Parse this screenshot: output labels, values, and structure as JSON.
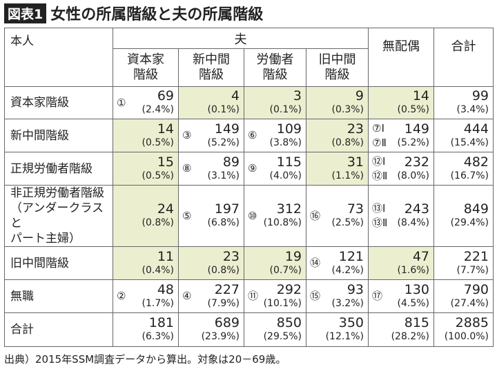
{
  "header": {
    "badge": "図表1",
    "title": "女性の所属階級と夫の所属階級"
  },
  "table": {
    "row_header": "本人",
    "group_header": "夫",
    "columns": [
      [
        "資本家",
        "階級"
      ],
      [
        "新中間",
        "階級"
      ],
      [
        "労働者",
        "階級"
      ],
      [
        "旧中間",
        "階級"
      ]
    ],
    "single_columns": [
      "無配偶",
      "合計"
    ],
    "rows": [
      {
        "label": [
          "資本家階級"
        ],
        "cells": [
          {
            "markers": [
              "①"
            ],
            "count": 69,
            "percent": "(2.4%)",
            "highlight": false
          },
          {
            "markers": [],
            "count": 4,
            "percent": "(0.1%)",
            "highlight": true
          },
          {
            "markers": [],
            "count": 3,
            "percent": "(0.1%)",
            "highlight": true
          },
          {
            "markers": [],
            "count": 9,
            "percent": "(0.3%)",
            "highlight": true
          },
          {
            "markers": [],
            "count": 14,
            "percent": "(0.5%)",
            "highlight": true
          },
          {
            "markers": [],
            "count": 99,
            "percent": "(3.4%)",
            "highlight": false
          }
        ]
      },
      {
        "label": [
          "新中間階級"
        ],
        "cells": [
          {
            "markers": [],
            "count": 14,
            "percent": "(0.5%)",
            "highlight": true
          },
          {
            "markers": [
              "③"
            ],
            "count": 149,
            "percent": "(5.2%)",
            "highlight": false
          },
          {
            "markers": [
              "⑥"
            ],
            "count": 109,
            "percent": "(3.8%)",
            "highlight": false
          },
          {
            "markers": [],
            "count": 23,
            "percent": "(0.8%)",
            "highlight": true
          },
          {
            "markers": [
              "⑦Ⅰ",
              "⑦Ⅱ"
            ],
            "count": 149,
            "percent": "(5.2%)",
            "highlight": false
          },
          {
            "markers": [],
            "count": 444,
            "percent": "(15.4%)",
            "highlight": false
          }
        ]
      },
      {
        "label": [
          "正規労働者階級"
        ],
        "cells": [
          {
            "markers": [],
            "count": 15,
            "percent": "(0.5%)",
            "highlight": true
          },
          {
            "markers": [
              "⑧"
            ],
            "count": 89,
            "percent": "(3.1%)",
            "highlight": false
          },
          {
            "markers": [
              "⑨"
            ],
            "count": 115,
            "percent": "(4.0%)",
            "highlight": false
          },
          {
            "markers": [],
            "count": 31,
            "percent": "(1.1%)",
            "highlight": true
          },
          {
            "markers": [
              "⑫Ⅰ",
              "⑫Ⅱ"
            ],
            "count": 232,
            "percent": "(8.0%)",
            "highlight": false
          },
          {
            "markers": [],
            "count": 482,
            "percent": "(16.7%)",
            "highlight": false
          }
        ]
      },
      {
        "label": [
          "非正規労働者階級",
          "（アンダークラスと",
          "パート主婦）"
        ],
        "cells": [
          {
            "markers": [],
            "count": 24,
            "percent": "(0.8%)",
            "highlight": true
          },
          {
            "markers": [
              "⑤"
            ],
            "count": 197,
            "percent": "(6.8%)",
            "highlight": false
          },
          {
            "markers": [
              "⑩"
            ],
            "count": 312,
            "percent": "(10.8%)",
            "highlight": false
          },
          {
            "markers": [
              "⑯"
            ],
            "count": 73,
            "percent": "(2.5%)",
            "highlight": false
          },
          {
            "markers": [
              "⑬Ⅰ",
              "⑬Ⅱ"
            ],
            "count": 243,
            "percent": "(8.4%)",
            "highlight": false
          },
          {
            "markers": [],
            "count": 849,
            "percent": "(29.4%)",
            "highlight": false
          }
        ]
      },
      {
        "label": [
          "旧中間階級"
        ],
        "cells": [
          {
            "markers": [],
            "count": 11,
            "percent": "(0.4%)",
            "highlight": true
          },
          {
            "markers": [],
            "count": 23,
            "percent": "(0.8%)",
            "highlight": true
          },
          {
            "markers": [],
            "count": 19,
            "percent": "(0.7%)",
            "highlight": true
          },
          {
            "markers": [
              "⑭"
            ],
            "count": 121,
            "percent": "(4.2%)",
            "highlight": false
          },
          {
            "markers": [],
            "count": 47,
            "percent": "(1.6%)",
            "highlight": true
          },
          {
            "markers": [],
            "count": 221,
            "percent": "(7.7%)",
            "highlight": false
          }
        ]
      },
      {
        "label": [
          "無職"
        ],
        "cells": [
          {
            "markers": [
              "②"
            ],
            "count": 48,
            "percent": "(1.7%)",
            "highlight": false
          },
          {
            "markers": [
              "④"
            ],
            "count": 227,
            "percent": "(7.9%)",
            "highlight": false
          },
          {
            "markers": [
              "⑪"
            ],
            "count": 292,
            "percent": "(10.1%)",
            "highlight": false
          },
          {
            "markers": [
              "⑮"
            ],
            "count": 93,
            "percent": "(3.2%)",
            "highlight": false
          },
          {
            "markers": [
              "⑰"
            ],
            "count": 130,
            "percent": "(4.5%)",
            "highlight": false
          },
          {
            "markers": [],
            "count": 790,
            "percent": "(27.4%)",
            "highlight": false
          }
        ]
      },
      {
        "label": [
          "合計"
        ],
        "cells": [
          {
            "markers": [],
            "count": 181,
            "percent": "(6.3%)",
            "highlight": false
          },
          {
            "markers": [],
            "count": 689,
            "percent": "(23.9%)",
            "highlight": false
          },
          {
            "markers": [],
            "count": 850,
            "percent": "(29.5%)",
            "highlight": false
          },
          {
            "markers": [],
            "count": 350,
            "percent": "(12.1%)",
            "highlight": false
          },
          {
            "markers": [],
            "count": 815,
            "percent": "(28.2%)",
            "highlight": false
          },
          {
            "markers": [],
            "count": 2885,
            "percent": "(100.0%)",
            "highlight": false
          }
        ]
      }
    ]
  },
  "footer": {
    "source": "出典）2015年SSM調査データから算出。対象は20－69歳。"
  }
}
